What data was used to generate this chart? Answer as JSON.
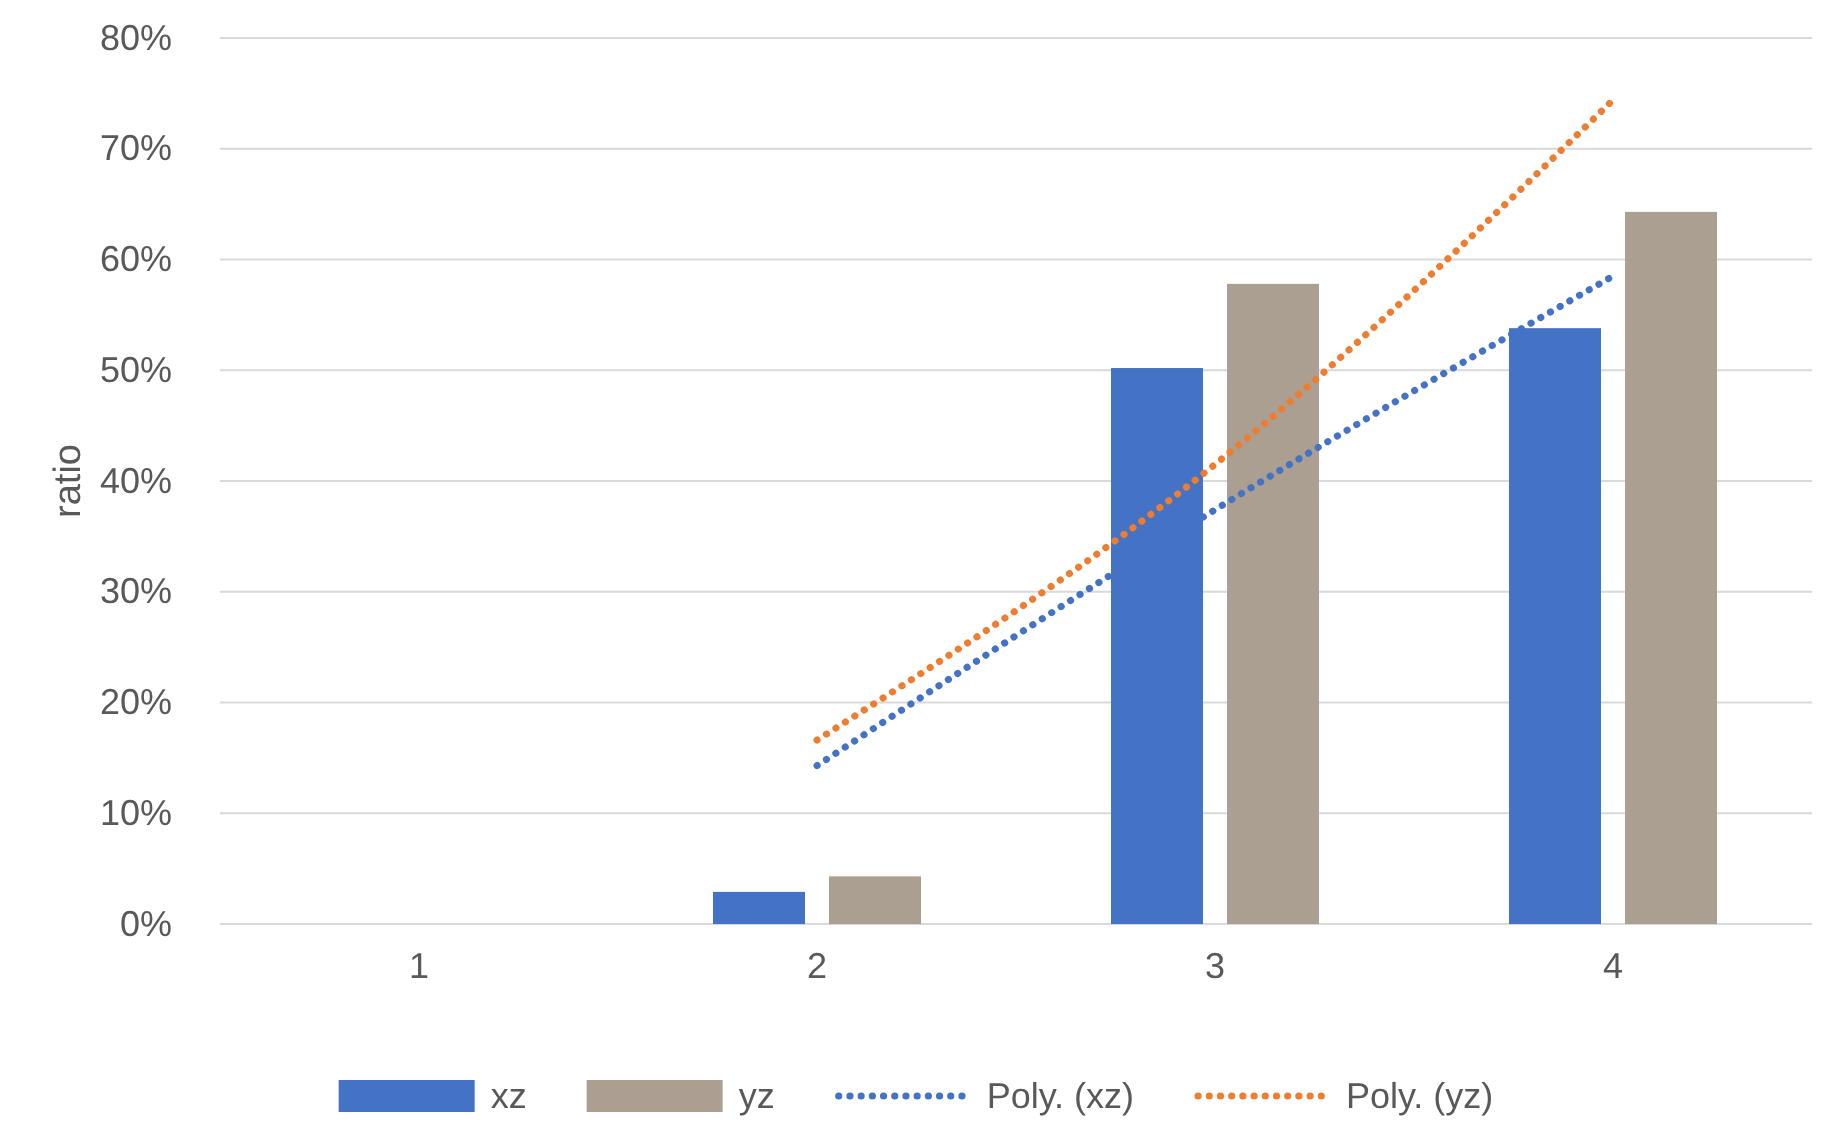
{
  "chart_data": {
    "type": "bar",
    "ylabel": "ratio",
    "categories": [
      "1",
      "2",
      "3",
      "4"
    ],
    "series": [
      {
        "name": "xz",
        "color": "#4472c4",
        "values": [
          0,
          2.9,
          50.2,
          53.8
        ]
      },
      {
        "name": "yz",
        "color": "#ab9f92",
        "values": [
          0,
          4.3,
          57.8,
          64.3
        ]
      },
      {
        "name": "Poly. (xz)",
        "type": "line",
        "line_style": "dotted",
        "color": "#4472c4",
        "values": [
          null,
          14.3,
          37.4,
          58.5
        ]
      },
      {
        "name": "Poly. (yz)",
        "type": "line",
        "line_style": "dotted",
        "color": "#ed7d31",
        "values": [
          null,
          16.6,
          41.5,
          74.4
        ]
      }
    ],
    "ylim": [
      0,
      80
    ],
    "yticks": [
      {
        "value": 0,
        "label": "0%"
      },
      {
        "value": 10,
        "label": "10%"
      },
      {
        "value": 20,
        "label": "20%"
      },
      {
        "value": 30,
        "label": "30%"
      },
      {
        "value": 40,
        "label": "40%"
      },
      {
        "value": 50,
        "label": "50%"
      },
      {
        "value": 60,
        "label": "60%"
      },
      {
        "value": 70,
        "label": "70%"
      },
      {
        "value": 80,
        "label": "80%"
      }
    ],
    "grid": "y",
    "legend": "bottom"
  }
}
